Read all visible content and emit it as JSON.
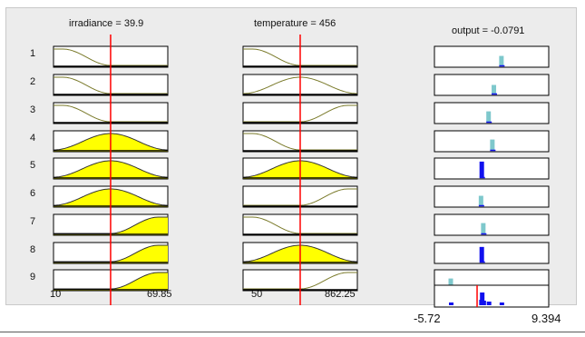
{
  "headers": {
    "irradiance": "irradiance = 39.9",
    "temperature": "temperature = 456",
    "output": "output = -0.0791"
  },
  "rules": [
    "1",
    "2",
    "3",
    "4",
    "5",
    "6",
    "7",
    "8",
    "9"
  ],
  "axes": {
    "irradiance_min": "10",
    "irradiance_max": "69.85",
    "temperature_min": "50",
    "temperature_max": "862.25",
    "output_min": "-5.72",
    "output_max": "9.394"
  },
  "inputs": {
    "irradiance": 39.9,
    "temperature": 456,
    "output": -0.0791
  },
  "membership": {
    "irradiance_mf_by_rule": [
      "low",
      "low",
      "low",
      "medium",
      "medium",
      "medium",
      "high",
      "high",
      "high"
    ],
    "temperature_mf_by_rule": [
      "low",
      "medium",
      "high",
      "low",
      "medium",
      "high",
      "low",
      "medium",
      "high"
    ],
    "rule_firing": [
      false,
      false,
      false,
      true,
      true,
      true,
      true,
      true,
      true
    ],
    "output_strength": [
      0.55,
      0.5,
      0.6,
      0.6,
      0.9,
      0.55,
      0.6,
      0.85,
      0.6
    ]
  },
  "colors": {
    "fill": "#ffff00",
    "line": "#7a7a2a",
    "marker": "#ff0000",
    "output_light": "#7ec8cc",
    "output_strong": "#1010ee"
  }
}
